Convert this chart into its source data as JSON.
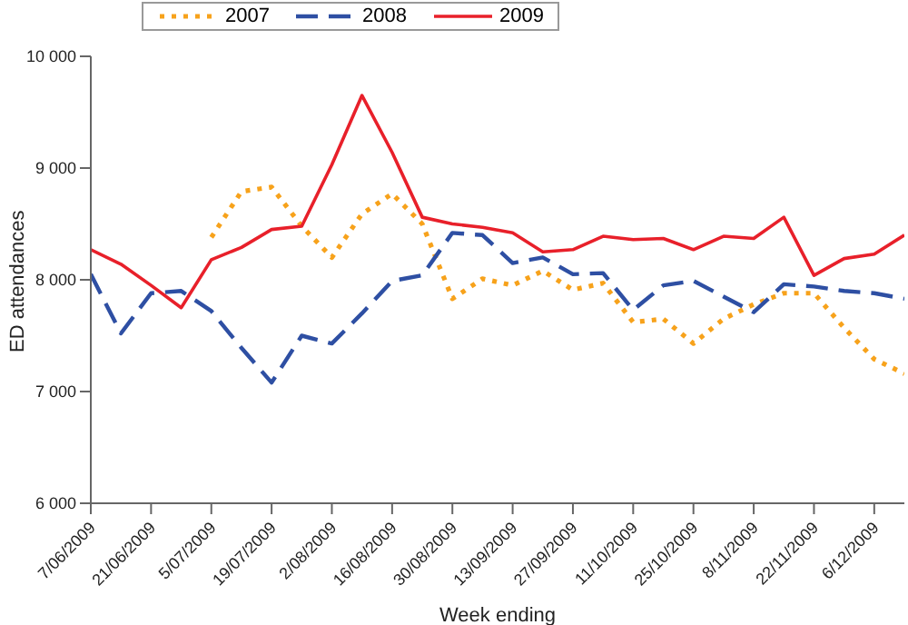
{
  "chart_data": {
    "type": "line",
    "xlabel": "Week ending",
    "ylabel": "ED attendances",
    "categories": [
      "7/06/2009",
      null,
      "21/06/2009",
      null,
      "5/07/2009",
      null,
      "19/07/2009",
      null,
      "2/08/2009",
      null,
      "16/08/2009",
      null,
      "30/08/2009",
      null,
      "13/09/2009",
      null,
      "27/09/2009",
      null,
      "11/10/2009",
      null,
      "25/10/2009",
      null,
      "8/11/2009",
      null,
      "22/11/2009",
      null,
      "6/12/2009",
      null
    ],
    "ylim": [
      6000,
      10000
    ],
    "yticks": [
      {
        "value": 6000,
        "label": "6 000"
      },
      {
        "value": 7000,
        "label": "7 000"
      },
      {
        "value": 8000,
        "label": "8 000"
      },
      {
        "value": 9000,
        "label": "9 000"
      },
      {
        "value": 10000,
        "label": "10 000"
      }
    ],
    "grid": false,
    "legend": "top",
    "series": [
      {
        "name": "2007",
        "color": "#f7a21b",
        "line_style": "dotted",
        "values": [
          null,
          null,
          null,
          null,
          8380,
          8790,
          8830,
          8480,
          8200,
          8590,
          8770,
          8500,
          7830,
          8010,
          7950,
          8080,
          7910,
          7970,
          7620,
          7650,
          7430,
          7650,
          7780,
          7880,
          7880,
          7570,
          7290,
          7160
        ]
      },
      {
        "name": "2008",
        "color": "#2e4fa3",
        "line_style": "dashed",
        "values": [
          8050,
          7520,
          7880,
          7900,
          7720,
          7390,
          7080,
          7500,
          7430,
          7700,
          7990,
          8040,
          8420,
          8400,
          8150,
          8200,
          8050,
          8060,
          7730,
          7950,
          7990,
          7850,
          7710,
          7960,
          7940,
          7900,
          7880,
          7830
        ]
      },
      {
        "name": "2009",
        "color": "#e8202a",
        "line_style": "solid",
        "values": [
          8270,
          8140,
          7950,
          7750,
          8180,
          8290,
          8450,
          8480,
          9030,
          9650,
          9140,
          8560,
          8500,
          8470,
          8420,
          8250,
          8270,
          8390,
          8360,
          8370,
          8270,
          8390,
          8370,
          8560,
          8040,
          8190,
          8230,
          8400
        ]
      }
    ]
  }
}
